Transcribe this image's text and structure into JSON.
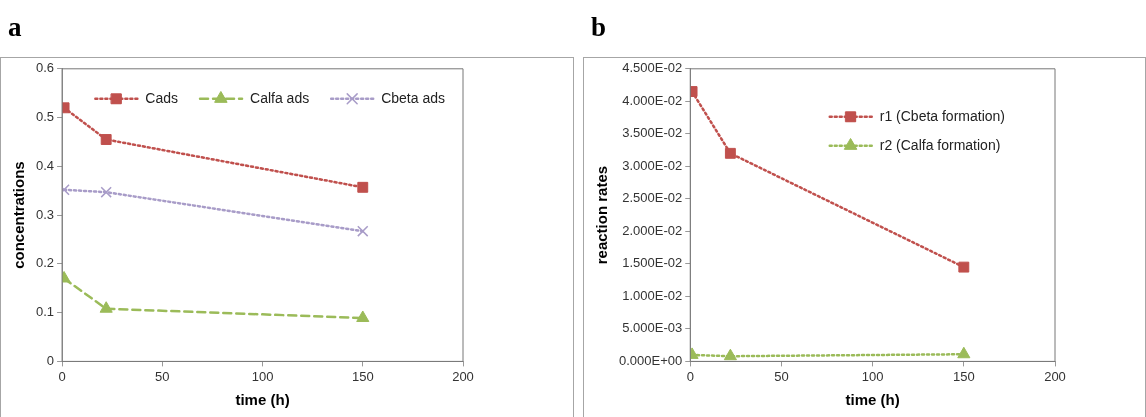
{
  "chart_data": [
    {
      "type": "line",
      "title": "a",
      "xlabel": "time (h)",
      "ylabel": "concentrations",
      "xlim": [
        0,
        200
      ],
      "xticks": [
        0,
        50,
        100,
        150,
        200
      ],
      "ylim": [
        0,
        0.6
      ],
      "yticks": [
        0,
        0.1,
        0.2,
        0.3,
        0.4,
        0.5,
        0.6
      ],
      "grid": false,
      "legend": "top",
      "x": [
        1,
        22,
        150
      ],
      "series": [
        {
          "name": "Cads",
          "color": "#c0504d",
          "values": [
            0.52,
            0.455,
            0.357
          ],
          "marker": "square",
          "line_style": "dotted"
        },
        {
          "name": "Calfa ads",
          "color": "#9bbb59",
          "values": [
            0.17,
            0.108,
            0.089
          ],
          "marker": "triangle",
          "line_style": "dashed"
        },
        {
          "name": "Cbeta ads",
          "color": "#a89cc8",
          "values": [
            0.352,
            0.347,
            0.267
          ],
          "marker": "cross",
          "line_style": "dotted"
        }
      ]
    },
    {
      "type": "line",
      "title": "b",
      "xlabel": "time (h)",
      "ylabel": "reaction rates",
      "xlim": [
        0,
        200
      ],
      "xticks": [
        0,
        50,
        100,
        150,
        200
      ],
      "ylim": [
        0,
        0.045
      ],
      "yticks": [
        {
          "value": 0,
          "label": "0.000E+00"
        },
        {
          "value": 0.005,
          "label": "5.000E-03"
        },
        {
          "value": 0.01,
          "label": "1.000E-02"
        },
        {
          "value": 0.015,
          "label": "1.500E-02"
        },
        {
          "value": 0.02,
          "label": "2.000E-02"
        },
        {
          "value": 0.025,
          "label": "2.500E-02"
        },
        {
          "value": 0.03,
          "label": "3.000E-02"
        },
        {
          "value": 0.035,
          "label": "3.500E-02"
        },
        {
          "value": 0.04,
          "label": "4.000E-02"
        },
        {
          "value": 0.045,
          "label": "4.500E-02"
        }
      ],
      "grid": false,
      "legend": "top right",
      "x": [
        1,
        22,
        150
      ],
      "series": [
        {
          "name": "r1 (Cbeta formation)",
          "color": "#c0504d",
          "values": [
            0.0415,
            0.032,
            0.0145
          ],
          "marker": "square",
          "line_style": "dotted"
        },
        {
          "name": "r2 (Calfa formation)",
          "color": "#9bbb59",
          "values": [
            0.001,
            0.0008,
            0.0011
          ],
          "marker": "triangle",
          "line_style": "dotted"
        }
      ]
    }
  ]
}
